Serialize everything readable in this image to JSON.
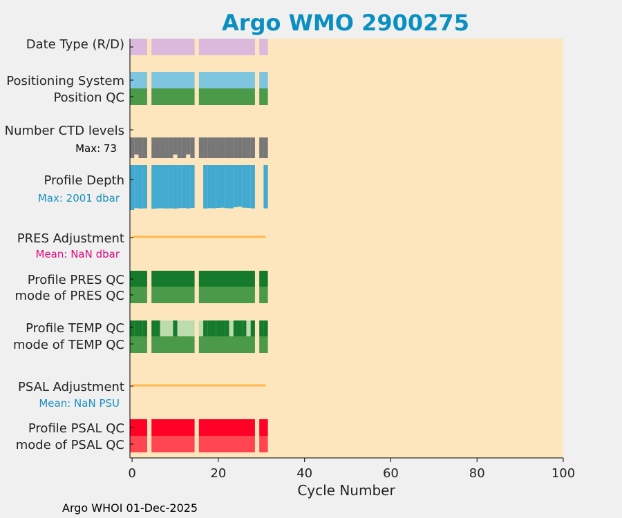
{
  "chart_data": {
    "type": "bar",
    "title": "Argo WMO 2900275",
    "xlabel": "Cycle Number",
    "xlim": [
      -0.5,
      100
    ],
    "xticks": [
      0,
      20,
      40,
      60,
      80,
      100
    ],
    "footer": "Argo WHOI 01-Dec-2025",
    "colors": {
      "title": "#0a8fc0",
      "background": "#fde6bd",
      "date_type": "#dbb9dd",
      "positioning_system": "#7ec5e0",
      "position_qc": "#4a9a4a",
      "ctd_levels": "#777777",
      "profile_depth": "#42aad0",
      "adjustment_line": "#ffb84d",
      "profile_qc_good": "#167a2c",
      "profile_qc_mixed": "#bcdcae",
      "mode_qc": "#4a9a4a",
      "psal_profile_qc": "#ff0027",
      "psal_mode_qc": "#ff4650",
      "pres_adj_label": "#e0087c",
      "psal_adj_label": "#1a8fc0",
      "depth_label": "#1a8fc0"
    },
    "cycle_ranges": [
      [
        0,
        3
      ],
      [
        5,
        14
      ],
      [
        16,
        28
      ],
      [
        30,
        31
      ]
    ],
    "cycles_present": [
      0,
      1,
      2,
      3,
      5,
      6,
      7,
      8,
      9,
      10,
      11,
      12,
      13,
      14,
      16,
      17,
      18,
      19,
      20,
      21,
      22,
      23,
      24,
      25,
      26,
      27,
      28,
      30,
      31
    ],
    "rows": {
      "date_type": {
        "label": "Date Type (R/D)"
      },
      "positioning_system": {
        "label": "Positioning System"
      },
      "position_qc": {
        "label": "Position QC"
      },
      "ctd_levels": {
        "label": "Number CTD levels",
        "max_label": "Max: 73",
        "max": 73,
        "values": [
          73,
          60,
          73,
          73,
          73,
          73,
          73,
          73,
          73,
          73,
          60,
          73,
          73,
          60,
          73,
          73,
          73,
          73,
          73,
          73,
          73,
          73,
          73,
          73,
          73,
          73,
          73,
          73,
          73,
          73,
          73,
          73
        ]
      },
      "profile_depth": {
        "label": "Profile Depth",
        "max_label": "Max: 2001 dbar",
        "max": 2001,
        "values_dbar": [
          2001,
          1920,
          1940,
          1930,
          0,
          1945,
          1930,
          1925,
          1935,
          1930,
          1940,
          1920,
          1915,
          1930,
          1910,
          1925,
          0,
          1935,
          1920,
          1925,
          1910,
          1900,
          1920,
          1930,
          1880,
          1860,
          1900,
          1910,
          1930,
          1920,
          0,
          1930
        ]
      },
      "pres_adjustment": {
        "label": "PRES Adjustment",
        "mean_label": "Mean:  NaN dbar"
      },
      "profile_pres_qc": {
        "label": "Profile PRES QC"
      },
      "mode_pres_qc": {
        "label": "mode of PRES QC"
      },
      "profile_temp_qc": {
        "label": "Profile TEMP QC",
        "grades": {
          "0": "A",
          "1": "A",
          "2": "A",
          "3": "A",
          "5": "A",
          "6": "A",
          "7": "B",
          "8": "B",
          "9": "B",
          "10": "A",
          "11": "B",
          "12": "B",
          "13": "B",
          "14": "B",
          "16": "B",
          "17": "A",
          "18": "A",
          "19": "A",
          "20": "A",
          "21": "A",
          "22": "A",
          "23": "B",
          "24": "A",
          "25": "A",
          "26": "A",
          "27": "B",
          "28": "A",
          "30": "A",
          "31": "A"
        }
      },
      "mode_temp_qc": {
        "label": "mode of TEMP QC"
      },
      "psal_adjustment": {
        "label": "PSAL Adjustment",
        "mean_label": "Mean:  NaN PSU"
      },
      "profile_psal_qc": {
        "label": "Profile PSAL QC"
      },
      "mode_psal_qc": {
        "label": "mode of PSAL QC"
      }
    }
  }
}
